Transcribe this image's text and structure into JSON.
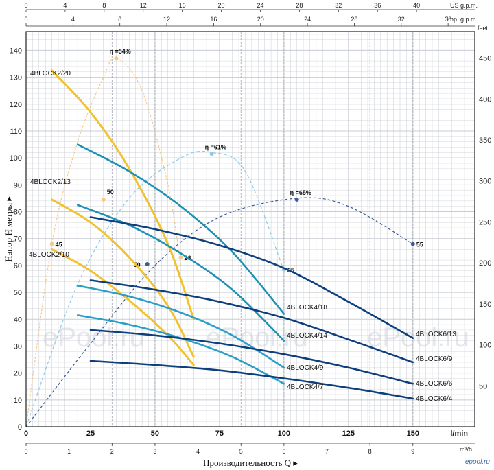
{
  "chart_data": {
    "type": "line",
    "ylabel": "Напор Н метры ▸",
    "xlabel": "Производительность Q ▸",
    "x_unit_lpm": "l/min",
    "x_unit_m3h": "m³/h",
    "top_unit_us": "US g.p.m.",
    "top_unit_imp": "Imp. g.p.m.",
    "right_unit": "feet",
    "xlim": [
      0,
      174
    ],
    "ylim": [
      0,
      147
    ],
    "x_ticks_lpm": [
      0,
      25,
      50,
      75,
      100,
      125,
      150
    ],
    "x_ticks_m3h": [
      0,
      1,
      2,
      3,
      4,
      5,
      6,
      7,
      8,
      9
    ],
    "y_ticks": [
      0,
      10,
      20,
      30,
      40,
      50,
      60,
      70,
      80,
      90,
      100,
      110,
      120,
      130,
      140
    ],
    "us_gpm_ticks": [
      0,
      4,
      8,
      12,
      16,
      20,
      24,
      28,
      32,
      36,
      40
    ],
    "imp_gpm_ticks": [
      0,
      4,
      8,
      12,
      16,
      20,
      24,
      28,
      32,
      36
    ],
    "feet_ticks": [
      50,
      100,
      150,
      200,
      250,
      300,
      350,
      400,
      450
    ],
    "grid": true,
    "colors": {
      "yellow": "#f2c12e",
      "mid_blue": "#1d90b5",
      "teal": "#2a9ec8",
      "dark_blue": "#0d3f7d",
      "eff_light": "#8ec9e6",
      "eff_yellow": "#f2c98a",
      "eff_dark": "#3d5a96",
      "grid": "#c8ccd4"
    },
    "series": [
      {
        "name": "4BLOCK2/20",
        "color": "#f2c12e",
        "points": [
          [
            10,
            132.5
          ],
          [
            25,
            117
          ],
          [
            40,
            96
          ],
          [
            55,
            68
          ],
          [
            65,
            40
          ]
        ]
      },
      {
        "name": "4BLOCK2/13",
        "color": "#f2c12e",
        "points": [
          [
            10,
            84.5
          ],
          [
            25,
            76
          ],
          [
            40,
            63
          ],
          [
            55,
            45
          ],
          [
            65,
            26
          ]
        ]
      },
      {
        "name": "4BLOCK2/10",
        "color": "#f2c12e",
        "points": [
          [
            10,
            66
          ],
          [
            25,
            58
          ],
          [
            40,
            47
          ],
          [
            55,
            34
          ],
          [
            65,
            23
          ]
        ]
      },
      {
        "name": "4BLOCK4/18",
        "color": "#1d90b5",
        "points": [
          [
            20,
            105
          ],
          [
            40,
            95
          ],
          [
            60,
            82
          ],
          [
            80,
            65
          ],
          [
            100,
            42
          ]
        ]
      },
      {
        "name": "4BLOCK4/14",
        "color": "#1d90b5",
        "points": [
          [
            20,
            82.5
          ],
          [
            40,
            75
          ],
          [
            60,
            64.5
          ],
          [
            80,
            51
          ],
          [
            100,
            32
          ]
        ]
      },
      {
        "name": "4BLOCK4/9",
        "color": "#2a9ec8",
        "points": [
          [
            20,
            52.5
          ],
          [
            40,
            48.5
          ],
          [
            60,
            42.5
          ],
          [
            80,
            34
          ],
          [
            100,
            22
          ]
        ]
      },
      {
        "name": "4BLOCK4/7",
        "color": "#2a9ec8",
        "points": [
          [
            20,
            41.5
          ],
          [
            40,
            38
          ],
          [
            60,
            33
          ],
          [
            80,
            26
          ],
          [
            100,
            16
          ]
        ]
      },
      {
        "name": "4BLOCK6/13",
        "color": "#0d3f7d",
        "points": [
          [
            25,
            78
          ],
          [
            50,
            73.5
          ],
          [
            75,
            67.5
          ],
          [
            100,
            59
          ],
          [
            125,
            46.5
          ],
          [
            150,
            33
          ]
        ]
      },
      {
        "name": "4BLOCK6/9",
        "color": "#0d3f7d",
        "points": [
          [
            25,
            54.5
          ],
          [
            50,
            51
          ],
          [
            75,
            46.5
          ],
          [
            100,
            40.5
          ],
          [
            125,
            32.5
          ],
          [
            150,
            24
          ]
        ]
      },
      {
        "name": "4BLOCK6/6",
        "color": "#0d3f7d",
        "points": [
          [
            25,
            36
          ],
          [
            50,
            34
          ],
          [
            75,
            31
          ],
          [
            100,
            27
          ],
          [
            125,
            22
          ],
          [
            150,
            16
          ]
        ]
      },
      {
        "name": "4BLOCK6/4",
        "color": "#0d3f7d",
        "points": [
          [
            25,
            24.5
          ],
          [
            50,
            23
          ],
          [
            75,
            21
          ],
          [
            100,
            18
          ],
          [
            125,
            14.5
          ],
          [
            150,
            10.5
          ]
        ]
      }
    ],
    "efficiency_curves": [
      {
        "label": "η =54%",
        "color": "#f2c98a",
        "points": [
          [
            0,
            0
          ],
          [
            10,
            68
          ],
          [
            20,
            106
          ],
          [
            30,
            130
          ],
          [
            35,
            137
          ],
          [
            45,
            125
          ],
          [
            55,
            90
          ],
          [
            60,
            60
          ]
        ],
        "markers": [
          {
            "x": 10,
            "y": 68,
            "label": "45"
          },
          {
            "x": 35,
            "y": 137,
            "label": ""
          },
          {
            "x": 30,
            "y": 84.5,
            "label": "50"
          },
          {
            "x": 60,
            "y": 63,
            "label": "26"
          }
        ]
      },
      {
        "label": "η =61%",
        "color": "#8ec9e6",
        "points": [
          [
            0,
            0
          ],
          [
            20,
            53
          ],
          [
            40,
            85
          ],
          [
            60,
            100
          ],
          [
            72,
            102
          ],
          [
            85,
            95
          ],
          [
            100,
            58
          ]
        ],
        "markers": [
          {
            "x": 72,
            "y": 101.5,
            "label": ""
          },
          {
            "x": 100,
            "y": 58.5,
            "label": "35"
          }
        ]
      },
      {
        "label": "η =65%",
        "color": "#3d5a96",
        "points": [
          [
            0,
            0
          ],
          [
            25,
            31
          ],
          [
            50,
            60
          ],
          [
            75,
            78
          ],
          [
            105,
            85
          ],
          [
            125,
            82
          ],
          [
            150,
            68
          ]
        ],
        "markers": [
          {
            "x": 47,
            "y": 60.5,
            "label": "50"
          },
          {
            "x": 105,
            "y": 84.5,
            "label": ""
          },
          {
            "x": 150,
            "y": 68,
            "label": "55"
          }
        ]
      }
    ]
  },
  "watermark": "ePool.ru",
  "logo": "epool.ru"
}
